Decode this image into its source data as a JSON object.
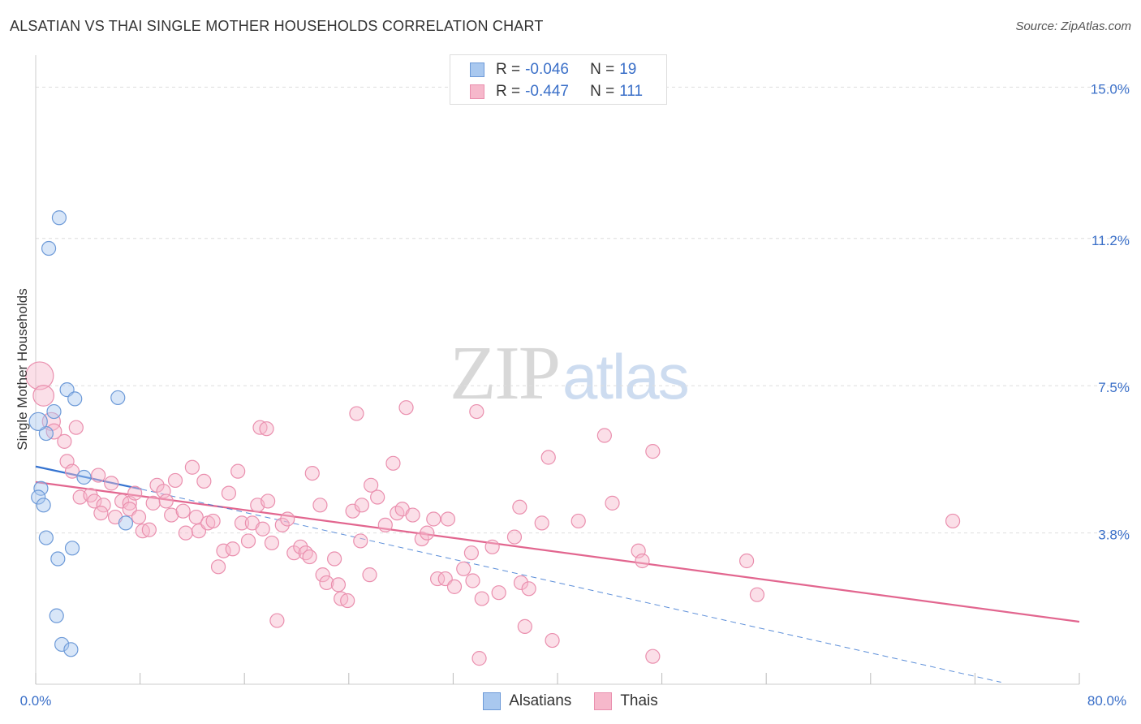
{
  "header": {
    "title": "ALSATIAN VS THAI SINGLE MOTHER HOUSEHOLDS CORRELATION CHART",
    "source": "Source: ZipAtlas.com"
  },
  "watermark": {
    "zip": "ZIP",
    "atlas": "atlas"
  },
  "legend": {
    "rows": [
      {
        "r_label": "R =",
        "r_value": "-0.046",
        "n_label": "N =",
        "n_value": "19"
      },
      {
        "r_label": "R =",
        "r_value": "-0.447",
        "n_label": "N =",
        "n_value": "111"
      }
    ],
    "bottom": [
      "Alsatians",
      "Thais"
    ]
  },
  "colors": {
    "alsatians_fill": "#a9c8ef",
    "alsatians_stroke": "#6d9ad8",
    "alsatians_line": "#3573d0",
    "thais_fill": "#f6b8cb",
    "thais_stroke": "#ea8fae",
    "thais_line": "#e2668f",
    "axis_label": "#3a6fc8",
    "grid": "#dedede"
  },
  "chart_data": {
    "type": "scatter",
    "title": "ALSATIAN VS THAI SINGLE MOTHER HOUSEHOLDS CORRELATION CHART",
    "xlabel": "",
    "ylabel": "Single Mother Households",
    "xlim": [
      0,
      80
    ],
    "ylim": [
      0,
      15.6
    ],
    "x_tick_labels": [
      "0.0%",
      "80.0%"
    ],
    "y_ticks": [
      3.8,
      7.5,
      11.2,
      15.0
    ],
    "y_tick_labels": [
      "3.8%",
      "7.5%",
      "11.2%",
      "15.0%"
    ],
    "legend_position": "top-center",
    "series": [
      {
        "name": "Alsatians",
        "R": -0.046,
        "N": 19,
        "trend": {
          "x": [
            0.0,
            8.1
          ],
          "y": [
            5.47,
            4.9
          ]
        },
        "trend_dashed": {
          "x": [
            8.1,
            74.0
          ],
          "y": [
            4.9,
            0.05
          ]
        },
        "points": [
          {
            "x": 1.8,
            "y": 11.72,
            "s": 1
          },
          {
            "x": 1.0,
            "y": 10.95,
            "s": 1
          },
          {
            "x": 2.4,
            "y": 7.4,
            "s": 1
          },
          {
            "x": 3.0,
            "y": 7.17,
            "s": 1
          },
          {
            "x": 6.3,
            "y": 7.2,
            "s": 1
          },
          {
            "x": 1.4,
            "y": 6.85,
            "s": 1
          },
          {
            "x": 0.8,
            "y": 6.3,
            "s": 1
          },
          {
            "x": 0.2,
            "y": 6.6,
            "s": 1.3
          },
          {
            "x": 3.7,
            "y": 5.2,
            "s": 1
          },
          {
            "x": 0.4,
            "y": 4.92,
            "s": 1
          },
          {
            "x": 0.2,
            "y": 4.7,
            "s": 1
          },
          {
            "x": 0.6,
            "y": 4.5,
            "s": 1
          },
          {
            "x": 6.9,
            "y": 4.05,
            "s": 1
          },
          {
            "x": 0.8,
            "y": 3.68,
            "s": 1
          },
          {
            "x": 2.8,
            "y": 3.42,
            "s": 1
          },
          {
            "x": 1.7,
            "y": 3.15,
            "s": 1
          },
          {
            "x": 1.6,
            "y": 1.72,
            "s": 1
          },
          {
            "x": 2.0,
            "y": 1.0,
            "s": 1
          },
          {
            "x": 2.7,
            "y": 0.87,
            "s": 1
          }
        ]
      },
      {
        "name": "Thais",
        "R": -0.447,
        "N": 111,
        "trend": {
          "x": [
            0.0,
            80.0
          ],
          "y": [
            5.08,
            1.57
          ]
        },
        "points": [
          {
            "x": 0.3,
            "y": 7.75,
            "s": 2.0
          },
          {
            "x": 0.6,
            "y": 7.25,
            "s": 1.5
          },
          {
            "x": 1.2,
            "y": 6.6,
            "s": 1.3
          },
          {
            "x": 1.4,
            "y": 6.35,
            "s": 1.1
          },
          {
            "x": 2.2,
            "y": 6.1,
            "s": 1
          },
          {
            "x": 3.1,
            "y": 6.45,
            "s": 1
          },
          {
            "x": 2.4,
            "y": 5.6,
            "s": 1
          },
          {
            "x": 2.8,
            "y": 5.35,
            "s": 1
          },
          {
            "x": 4.8,
            "y": 5.25,
            "s": 1
          },
          {
            "x": 5.8,
            "y": 5.05,
            "s": 1
          },
          {
            "x": 3.4,
            "y": 4.7,
            "s": 1
          },
          {
            "x": 4.2,
            "y": 4.75,
            "s": 1
          },
          {
            "x": 4.5,
            "y": 4.6,
            "s": 1
          },
          {
            "x": 5.2,
            "y": 4.5,
            "s": 1
          },
          {
            "x": 5.0,
            "y": 4.3,
            "s": 1
          },
          {
            "x": 6.1,
            "y": 4.2,
            "s": 1
          },
          {
            "x": 6.6,
            "y": 4.6,
            "s": 1
          },
          {
            "x": 7.2,
            "y": 4.55,
            "s": 1
          },
          {
            "x": 7.6,
            "y": 4.8,
            "s": 1
          },
          {
            "x": 7.2,
            "y": 4.4,
            "s": 1
          },
          {
            "x": 7.9,
            "y": 4.2,
            "s": 1
          },
          {
            "x": 8.2,
            "y": 3.85,
            "s": 1
          },
          {
            "x": 8.7,
            "y": 3.88,
            "s": 1
          },
          {
            "x": 9.0,
            "y": 4.55,
            "s": 1
          },
          {
            "x": 9.3,
            "y": 5.0,
            "s": 1
          },
          {
            "x": 9.8,
            "y": 4.85,
            "s": 1
          },
          {
            "x": 10.0,
            "y": 4.6,
            "s": 1
          },
          {
            "x": 10.4,
            "y": 4.25,
            "s": 1
          },
          {
            "x": 10.7,
            "y": 5.12,
            "s": 1
          },
          {
            "x": 11.3,
            "y": 4.35,
            "s": 1
          },
          {
            "x": 11.5,
            "y": 3.8,
            "s": 1
          },
          {
            "x": 12.0,
            "y": 5.45,
            "s": 1
          },
          {
            "x": 12.3,
            "y": 4.2,
            "s": 1
          },
          {
            "x": 12.5,
            "y": 3.85,
            "s": 1
          },
          {
            "x": 12.9,
            "y": 5.1,
            "s": 1
          },
          {
            "x": 13.2,
            "y": 4.05,
            "s": 1
          },
          {
            "x": 13.6,
            "y": 4.1,
            "s": 1
          },
          {
            "x": 14.0,
            "y": 2.95,
            "s": 1
          },
          {
            "x": 14.4,
            "y": 3.35,
            "s": 1
          },
          {
            "x": 14.8,
            "y": 4.8,
            "s": 1
          },
          {
            "x": 15.1,
            "y": 3.4,
            "s": 1
          },
          {
            "x": 15.5,
            "y": 5.35,
            "s": 1
          },
          {
            "x": 15.8,
            "y": 4.05,
            "s": 1
          },
          {
            "x": 16.3,
            "y": 3.6,
            "s": 1
          },
          {
            "x": 16.6,
            "y": 4.05,
            "s": 1
          },
          {
            "x": 17.0,
            "y": 4.5,
            "s": 1
          },
          {
            "x": 17.4,
            "y": 3.9,
            "s": 1
          },
          {
            "x": 17.2,
            "y": 6.45,
            "s": 1
          },
          {
            "x": 17.7,
            "y": 6.42,
            "s": 1
          },
          {
            "x": 17.8,
            "y": 4.6,
            "s": 1
          },
          {
            "x": 18.1,
            "y": 3.55,
            "s": 1
          },
          {
            "x": 18.5,
            "y": 1.6,
            "s": 1
          },
          {
            "x": 18.9,
            "y": 4.0,
            "s": 1
          },
          {
            "x": 19.3,
            "y": 4.15,
            "s": 1
          },
          {
            "x": 19.8,
            "y": 3.3,
            "s": 1
          },
          {
            "x": 20.3,
            "y": 3.45,
            "s": 1
          },
          {
            "x": 20.7,
            "y": 3.3,
            "s": 1
          },
          {
            "x": 21.0,
            "y": 3.2,
            "s": 1
          },
          {
            "x": 21.2,
            "y": 5.3,
            "s": 1
          },
          {
            "x": 21.8,
            "y": 4.5,
            "s": 1
          },
          {
            "x": 22.0,
            "y": 2.75,
            "s": 1
          },
          {
            "x": 22.3,
            "y": 2.55,
            "s": 1
          },
          {
            "x": 22.9,
            "y": 3.15,
            "s": 1
          },
          {
            "x": 23.2,
            "y": 2.5,
            "s": 1
          },
          {
            "x": 23.4,
            "y": 2.15,
            "s": 1
          },
          {
            "x": 23.9,
            "y": 2.1,
            "s": 1
          },
          {
            "x": 24.3,
            "y": 4.35,
            "s": 1
          },
          {
            "x": 24.6,
            "y": 6.8,
            "s": 1
          },
          {
            "x": 24.9,
            "y": 3.6,
            "s": 1
          },
          {
            "x": 25.0,
            "y": 4.5,
            "s": 1
          },
          {
            "x": 25.6,
            "y": 2.75,
            "s": 1
          },
          {
            "x": 25.7,
            "y": 5.0,
            "s": 1
          },
          {
            "x": 26.2,
            "y": 4.7,
            "s": 1
          },
          {
            "x": 26.8,
            "y": 4.0,
            "s": 1
          },
          {
            "x": 27.4,
            "y": 5.55,
            "s": 1
          },
          {
            "x": 27.7,
            "y": 4.3,
            "s": 1
          },
          {
            "x": 28.1,
            "y": 4.4,
            "s": 1
          },
          {
            "x": 28.4,
            "y": 6.95,
            "s": 1
          },
          {
            "x": 28.9,
            "y": 4.25,
            "s": 1
          },
          {
            "x": 29.6,
            "y": 3.65,
            "s": 1
          },
          {
            "x": 30.0,
            "y": 3.8,
            "s": 1
          },
          {
            "x": 30.5,
            "y": 4.15,
            "s": 1
          },
          {
            "x": 30.8,
            "y": 2.65,
            "s": 1
          },
          {
            "x": 31.4,
            "y": 2.65,
            "s": 1
          },
          {
            "x": 31.6,
            "y": 4.15,
            "s": 1
          },
          {
            "x": 32.1,
            "y": 2.45,
            "s": 1
          },
          {
            "x": 32.8,
            "y": 2.9,
            "s": 1
          },
          {
            "x": 33.4,
            "y": 3.3,
            "s": 1
          },
          {
            "x": 33.5,
            "y": 2.6,
            "s": 1
          },
          {
            "x": 33.8,
            "y": 6.85,
            "s": 1
          },
          {
            "x": 34.2,
            "y": 2.15,
            "s": 1
          },
          {
            "x": 34.0,
            "y": 0.65,
            "s": 1
          },
          {
            "x": 35.0,
            "y": 3.45,
            "s": 1
          },
          {
            "x": 35.5,
            "y": 2.3,
            "s": 1
          },
          {
            "x": 36.7,
            "y": 3.7,
            "s": 1
          },
          {
            "x": 37.1,
            "y": 4.45,
            "s": 1
          },
          {
            "x": 37.2,
            "y": 2.55,
            "s": 1
          },
          {
            "x": 37.5,
            "y": 1.45,
            "s": 1
          },
          {
            "x": 37.8,
            "y": 2.4,
            "s": 1
          },
          {
            "x": 38.8,
            "y": 4.05,
            "s": 1
          },
          {
            "x": 39.3,
            "y": 5.7,
            "s": 1
          },
          {
            "x": 39.6,
            "y": 1.1,
            "s": 1
          },
          {
            "x": 41.6,
            "y": 4.1,
            "s": 1
          },
          {
            "x": 43.6,
            "y": 6.25,
            "s": 1
          },
          {
            "x": 44.2,
            "y": 4.55,
            "s": 1
          },
          {
            "x": 46.2,
            "y": 3.35,
            "s": 1
          },
          {
            "x": 46.5,
            "y": 3.1,
            "s": 1
          },
          {
            "x": 47.3,
            "y": 5.85,
            "s": 1
          },
          {
            "x": 47.3,
            "y": 0.7,
            "s": 1
          },
          {
            "x": 54.5,
            "y": 3.1,
            "s": 1
          },
          {
            "x": 55.3,
            "y": 2.25,
            "s": 1
          },
          {
            "x": 70.3,
            "y": 4.1,
            "s": 1
          }
        ]
      }
    ]
  }
}
